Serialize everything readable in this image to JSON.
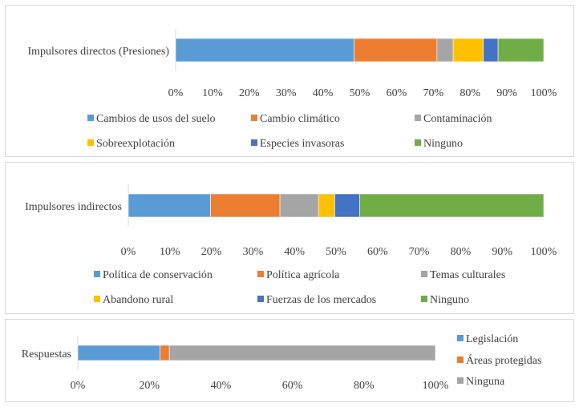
{
  "chart_data": [
    {
      "type": "bar",
      "orientation": "horizontal",
      "stacked": true,
      "category": "Impulsores directos (Presiones)",
      "xlim": [
        0,
        100
      ],
      "ticks": [
        "0%",
        "10%",
        "20%",
        "30%",
        "40%",
        "50%",
        "60%",
        "70%",
        "80%",
        "90%",
        "100%"
      ],
      "legend_position": "bottom",
      "series": [
        {
          "name": "Cambios de usos del suelo",
          "value": 48.5,
          "color": "#5b9bd5"
        },
        {
          "name": "Cambio climático",
          "value": 22.5,
          "color": "#ed7d31"
        },
        {
          "name": "Contaminación",
          "value": 4.4,
          "color": "#a5a5a5"
        },
        {
          "name": "Sobreexplotación",
          "value": 8.2,
          "color": "#ffc000"
        },
        {
          "name": "Especies invasoras",
          "value": 4.0,
          "color": "#4472c4"
        },
        {
          "name": "Ninguno",
          "value": 12.4,
          "color": "#70ad47"
        }
      ]
    },
    {
      "type": "bar",
      "orientation": "horizontal",
      "stacked": true,
      "category": "Impulsores indirectos",
      "xlim": [
        0,
        100
      ],
      "ticks": [
        "0%",
        "10%",
        "20%",
        "30%",
        "40%",
        "50%",
        "60%",
        "70%",
        "80%",
        "90%",
        "100%"
      ],
      "legend_position": "bottom",
      "series": [
        {
          "name": "Política de conservación",
          "value": 19.8,
          "color": "#5b9bd5"
        },
        {
          "name": "Política agrícola",
          "value": 16.7,
          "color": "#ed7d31"
        },
        {
          "name": "Temas culturales",
          "value": 9.3,
          "color": "#a5a5a5"
        },
        {
          "name": "Abandono rural",
          "value": 3.9,
          "color": "#ffc000"
        },
        {
          "name": "Fuerzas de los mercados",
          "value": 6.0,
          "color": "#4472c4"
        },
        {
          "name": "Ninguno",
          "value": 44.3,
          "color": "#70ad47"
        }
      ]
    },
    {
      "type": "bar",
      "orientation": "horizontal",
      "stacked": true,
      "category": "Respuestas",
      "xlim": [
        0,
        100
      ],
      "ticks": [
        "0%",
        "20%",
        "40%",
        "60%",
        "80%",
        "100%"
      ],
      "legend_position": "right",
      "series": [
        {
          "name": "Legislación",
          "value": 23.0,
          "color": "#5b9bd5"
        },
        {
          "name": "Áreas protegidas",
          "value": 2.6,
          "color": "#ed7d31"
        },
        {
          "name": "Ninguna",
          "value": 74.4,
          "color": "#a5a5a5"
        }
      ]
    }
  ]
}
